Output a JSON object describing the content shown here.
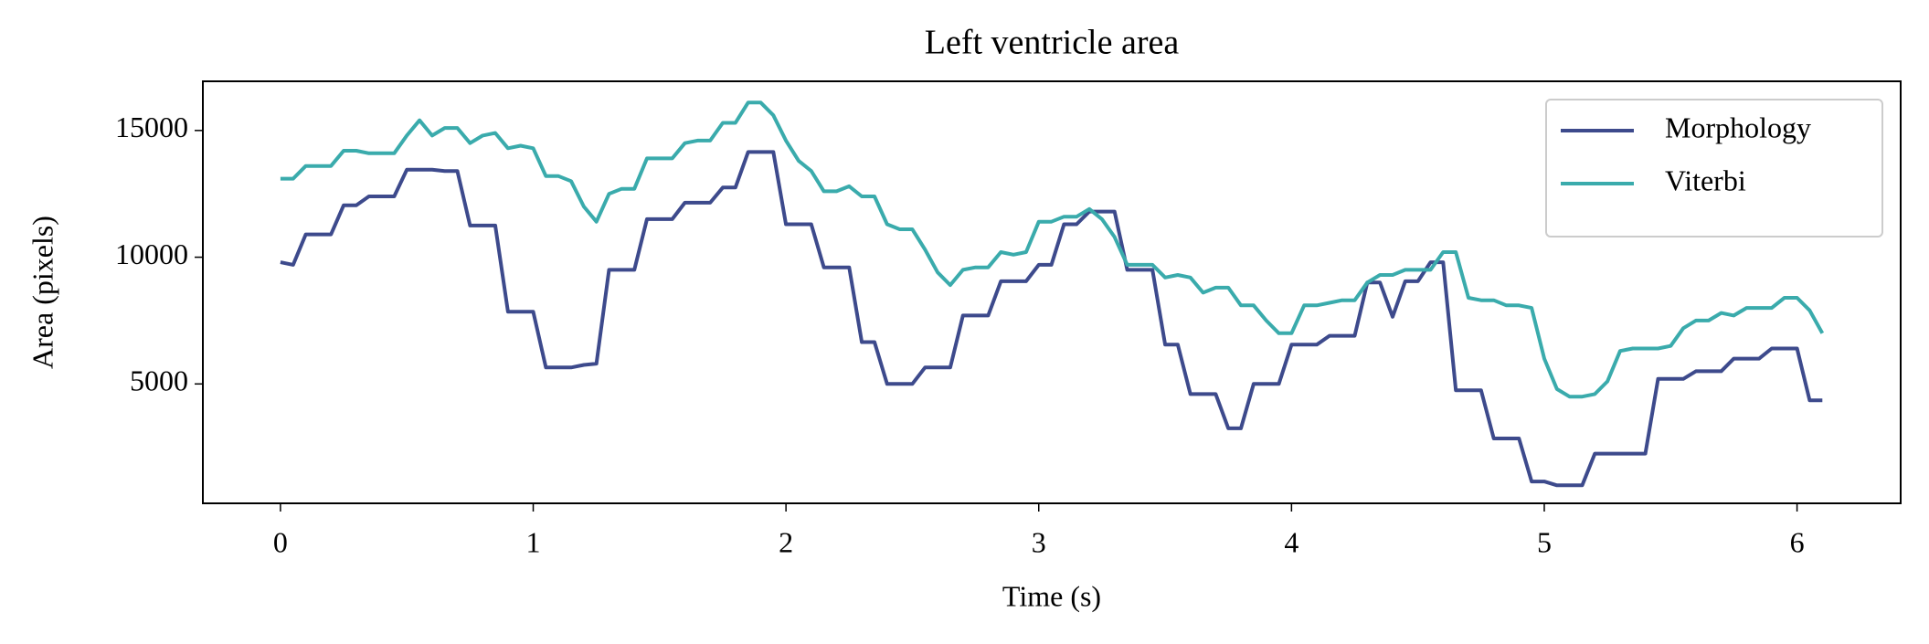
{
  "chart_data": {
    "type": "line",
    "title": "Left ventricle area",
    "xlabel": "Time (s)",
    "ylabel": "Area (pixels)",
    "x": [
      0,
      0.05,
      0.1,
      0.15,
      0.2,
      0.25,
      0.3,
      0.35,
      0.4,
      0.45,
      0.5,
      0.55,
      0.6,
      0.65,
      0.7,
      0.75,
      0.8,
      0.85,
      0.9,
      0.95,
      1,
      1.05,
      1.1,
      1.15,
      1.2,
      1.25,
      1.3,
      1.35,
      1.4,
      1.45,
      1.5,
      1.55,
      1.6,
      1.65,
      1.7,
      1.75,
      1.8,
      1.85,
      1.9,
      1.95,
      2,
      2.05,
      2.1,
      2.15,
      2.2,
      2.25,
      2.3,
      2.35,
      2.4,
      2.45,
      2.5,
      2.55,
      2.6,
      2.65,
      2.7,
      2.75,
      2.8,
      2.85,
      2.9,
      2.95,
      3,
      3.05,
      3.1,
      3.15,
      3.2,
      3.25,
      3.3,
      3.35,
      3.4,
      3.45,
      3.5,
      3.55,
      3.6,
      3.65,
      3.7,
      3.75,
      3.8,
      3.85,
      3.9,
      3.95,
      4,
      4.05,
      4.1,
      4.15,
      4.2,
      4.25,
      4.3,
      4.35,
      4.4,
      4.45,
      4.5,
      4.55,
      4.6,
      4.65,
      4.7,
      4.75,
      4.8,
      4.85,
      4.9,
      4.95,
      5,
      5.05,
      5.1,
      5.15,
      5.2,
      5.25,
      5.3,
      5.35,
      5.4,
      5.45,
      5.5,
      5.55,
      5.6,
      5.65,
      5.7,
      5.75,
      5.8,
      5.85,
      5.9,
      5.95,
      6,
      6.05,
      6.1
    ],
    "series": [
      {
        "name": "Morphology",
        "color": "#3d4a8c",
        "values": [
          9800,
          9700,
          10900,
          10900,
          10900,
          12050,
          12050,
          12400,
          12400,
          12400,
          13450,
          13450,
          13450,
          13400,
          13400,
          11250,
          11250,
          11250,
          7850,
          7850,
          7850,
          5650,
          5650,
          5650,
          5750,
          5800,
          9500,
          9500,
          9500,
          11500,
          11500,
          11500,
          12150,
          12150,
          12150,
          12750,
          12750,
          14150,
          14150,
          14150,
          11300,
          11300,
          11300,
          9600,
          9600,
          9600,
          6650,
          6650,
          5000,
          5000,
          5000,
          5650,
          5650,
          5650,
          7700,
          7700,
          7700,
          9050,
          9050,
          9050,
          9700,
          9700,
          11300,
          11300,
          11800,
          11800,
          11800,
          9500,
          9500,
          9500,
          6550,
          6550,
          4600,
          4600,
          4600,
          3250,
          3250,
          5000,
          5000,
          5000,
          6550,
          6550,
          6550,
          6900,
          6900,
          6900,
          9000,
          9000,
          7650,
          9050,
          9050,
          9800,
          9800,
          4750,
          4750,
          4750,
          2850,
          2850,
          2850,
          1150,
          1150,
          1000,
          1000,
          1000,
          2250,
          2250,
          2250,
          2250,
          2250,
          5200,
          5200,
          5200,
          5500,
          5500,
          5500,
          6000,
          6000,
          6000,
          6400,
          6400,
          6400,
          4350,
          4350
        ]
      },
      {
        "name": "Viterbi",
        "color": "#3aabac",
        "values": [
          13100,
          13100,
          13600,
          13600,
          13600,
          14200,
          14200,
          14100,
          14100,
          14100,
          14800,
          15400,
          14800,
          15100,
          15100,
          14500,
          14800,
          14900,
          14300,
          14400,
          14300,
          13200,
          13200,
          13000,
          12000,
          11400,
          12500,
          12700,
          12700,
          13900,
          13900,
          13900,
          14500,
          14600,
          14600,
          15300,
          15300,
          16100,
          16100,
          15600,
          14600,
          13800,
          13400,
          12600,
          12600,
          12800,
          12400,
          12400,
          11300,
          11100,
          11100,
          10300,
          9400,
          8900,
          9500,
          9600,
          9600,
          10200,
          10100,
          10200,
          11400,
          11400,
          11600,
          11600,
          11900,
          11500,
          10800,
          9700,
          9700,
          9700,
          9200,
          9300,
          9200,
          8600,
          8800,
          8800,
          8100,
          8100,
          7500,
          7000,
          7000,
          8100,
          8100,
          8200,
          8300,
          8300,
          9000,
          9300,
          9300,
          9500,
          9500,
          9500,
          10200,
          10200,
          8400,
          8300,
          8300,
          8100,
          8100,
          8000,
          6000,
          4800,
          4500,
          4500,
          4600,
          5100,
          6300,
          6400,
          6400,
          6400,
          6500,
          7200,
          7500,
          7500,
          7800,
          7700,
          8000,
          8000,
          8000,
          8400,
          8400,
          7900,
          7000
        ]
      }
    ],
    "xlim": [
      -0.307,
      6.41
    ],
    "ylim": [
      290,
      16940
    ],
    "xticks": [
      0,
      1,
      2,
      3,
      4,
      5,
      6
    ],
    "yticks": [
      5000,
      10000,
      15000
    ],
    "grid": false,
    "legend": "upper right"
  }
}
